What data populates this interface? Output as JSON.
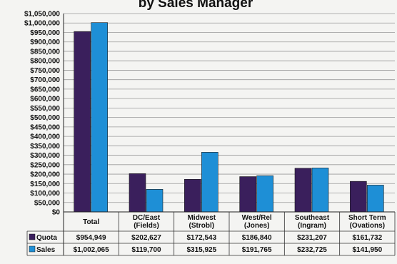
{
  "chart_data": {
    "type": "bar",
    "title": "by Sales Manager",
    "categories": [
      [
        "Total"
      ],
      [
        "DC/East",
        "(Fields)"
      ],
      [
        "Midwest",
        "(Strobl)"
      ],
      [
        "West/Rel",
        "(Jones)"
      ],
      [
        "Southeast",
        "(Ingram)"
      ],
      [
        "Short Term",
        "(Ovations)"
      ]
    ],
    "series": [
      {
        "name": "Quota",
        "color": "#3a1f5c",
        "values": [
          954949,
          202627,
          172543,
          186840,
          231207,
          161732
        ],
        "labels": [
          "$954,949",
          "$202,627",
          "$172,543",
          "$186,840",
          "$231,207",
          "$161,732"
        ]
      },
      {
        "name": "Sales",
        "color": "#1e8fd6",
        "values": [
          1002065,
          119700,
          315925,
          191765,
          232725,
          141950
        ],
        "labels": [
          "$1,002,065",
          "$119,700",
          "$315,925",
          "$191,765",
          "$232,725",
          "$141,950"
        ]
      }
    ],
    "ylim": [
      0,
      1050000
    ],
    "ytick_step": 50000,
    "grid": true,
    "legend": "data-table-left"
  }
}
